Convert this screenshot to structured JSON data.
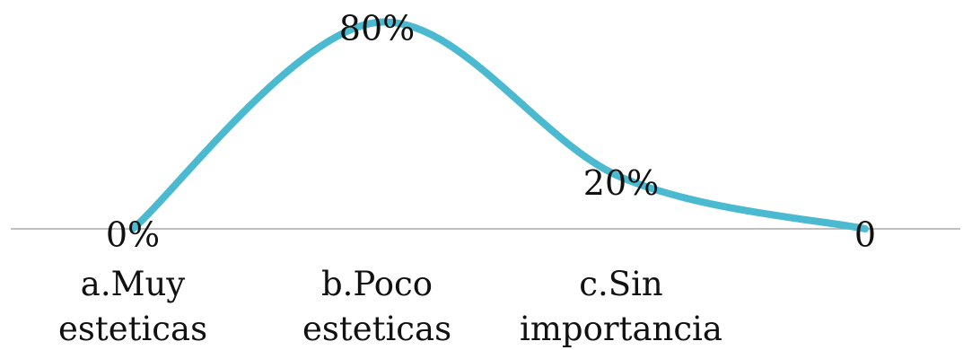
{
  "chart_data": {
    "type": "line",
    "categories": [
      "a.Muy esteticas",
      "b.Poco esteticas",
      "c.Sin importancia",
      null
    ],
    "values": [
      0,
      80,
      20,
      0
    ],
    "value_labels": [
      "0%",
      "80%",
      "20%",
      "0"
    ],
    "color": "#4bbad0",
    "smooth": true
  }
}
